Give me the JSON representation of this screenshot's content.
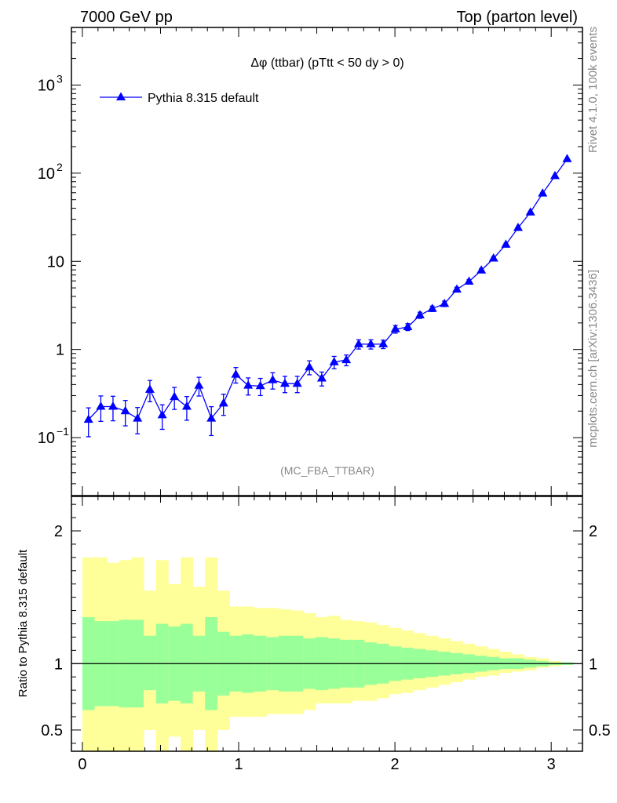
{
  "header": {
    "left": "7000 GeV pp",
    "right": "Top (parton level)"
  },
  "side_text": {
    "rivet": "Rivet 4.1.0,  100k events",
    "mcplots": "mcplots.cern.ch [arXiv:1306.3436]"
  },
  "colors": {
    "series": "#0000ff",
    "band_inner": "#99ff99",
    "band_outer": "#ffff99",
    "watermark": "#888888"
  },
  "chart_data": [
    {
      "type": "line",
      "title": "Δφ (ttbar) (pTtt < 50 dy > 0)",
      "watermark": "(MC_FBA_TTBAR)",
      "xlim": [
        -0.07,
        3.2
      ],
      "ylim": [
        0.022,
        4500
      ],
      "yscale": "log",
      "ytick_labels": [
        "10",
        "1",
        "10"
      ],
      "ytick_label_exponents": [
        "−1",
        "",
        "2"
      ],
      "ytick_label_values": [
        0.1,
        1,
        10,
        100,
        1000
      ],
      "ytick_labels_full": [
        "10^-1",
        "1",
        "10",
        "10^2",
        "10^3"
      ],
      "legend": {
        "label": "Pythia 8.315 default",
        "position": "top-left"
      },
      "series": [
        {
          "name": "Pythia 8.315 default",
          "marker": "triangle-up",
          "x": [
            0.039,
            0.118,
            0.196,
            0.275,
            0.353,
            0.432,
            0.511,
            0.589,
            0.668,
            0.746,
            0.825,
            0.903,
            0.982,
            1.061,
            1.139,
            1.218,
            1.296,
            1.375,
            1.453,
            1.532,
            1.611,
            1.689,
            1.768,
            1.846,
            1.925,
            2.003,
            2.082,
            2.16,
            2.239,
            2.317,
            2.396,
            2.474,
            2.553,
            2.631,
            2.71,
            2.788,
            2.867,
            2.945,
            3.024,
            3.102
          ],
          "y": [
            0.16,
            0.225,
            0.225,
            0.2,
            0.165,
            0.35,
            0.18,
            0.29,
            0.225,
            0.39,
            0.165,
            0.245,
            0.52,
            0.39,
            0.385,
            0.45,
            0.41,
            0.41,
            0.63,
            0.47,
            0.72,
            0.76,
            1.15,
            1.15,
            1.15,
            1.7,
            1.8,
            2.45,
            2.9,
            3.3,
            4.8,
            5.9,
            7.9,
            10.8,
            15.5,
            24.0,
            36.0,
            59.0,
            93.0,
            145.0
          ],
          "yerr_frac": [
            0.36,
            0.32,
            0.31,
            0.32,
            0.33,
            0.27,
            0.31,
            0.28,
            0.3,
            0.24,
            0.36,
            0.27,
            0.2,
            0.22,
            0.22,
            0.21,
            0.21,
            0.21,
            0.18,
            0.18,
            0.16,
            0.14,
            0.12,
            0.12,
            0.11,
            0.1,
            0.09,
            0.08,
            0.07,
            0.07,
            0.06,
            0.05,
            0.045,
            0.04,
            0.035,
            0.03,
            0.025,
            0.02,
            0.018,
            0.015
          ]
        }
      ]
    },
    {
      "type": "area",
      "ylabel": "Ratio to Pythia 8.315 default",
      "xlim": [
        -0.07,
        3.2
      ],
      "ylim": [
        0.34,
        2.26
      ],
      "xtick_labels": [
        "0",
        "1",
        "2",
        "3"
      ],
      "ytick_labels": [
        "0.5",
        "1",
        "2"
      ],
      "ytick_values": [
        0.5,
        1,
        2
      ],
      "bin_edges": [
        0.0,
        0.0785,
        0.157,
        0.2355,
        0.314,
        0.3925,
        0.471,
        0.5495,
        0.628,
        0.7065,
        0.785,
        0.8635,
        0.942,
        1.0205,
        1.099,
        1.1775,
        1.256,
        1.3345,
        1.413,
        1.4915,
        1.57,
        1.6485,
        1.727,
        1.8055,
        1.884,
        1.9625,
        2.041,
        2.1195,
        2.198,
        2.2765,
        2.355,
        2.4335,
        2.512,
        2.5905,
        2.669,
        2.7475,
        2.826,
        2.9045,
        2.983,
        3.0615,
        3.14
      ],
      "inner_band": {
        "name": "stat",
        "lo": [
          0.65,
          0.68,
          0.68,
          0.67,
          0.67,
          0.8,
          0.7,
          0.72,
          0.7,
          0.79,
          0.65,
          0.76,
          0.79,
          0.78,
          0.79,
          0.8,
          0.79,
          0.79,
          0.81,
          0.8,
          0.81,
          0.82,
          0.82,
          0.84,
          0.85,
          0.87,
          0.88,
          0.89,
          0.9,
          0.91,
          0.92,
          0.93,
          0.94,
          0.95,
          0.96,
          0.96,
          0.97,
          0.98,
          0.99,
          0.99
        ],
        "hi": [
          1.35,
          1.32,
          1.32,
          1.33,
          1.33,
          1.21,
          1.3,
          1.28,
          1.3,
          1.21,
          1.35,
          1.24,
          1.21,
          1.22,
          1.21,
          1.2,
          1.21,
          1.21,
          1.19,
          1.2,
          1.19,
          1.18,
          1.18,
          1.16,
          1.15,
          1.13,
          1.12,
          1.11,
          1.1,
          1.09,
          1.08,
          1.07,
          1.06,
          1.05,
          1.04,
          1.04,
          1.03,
          1.02,
          1.01,
          1.01
        ]
      },
      "outer_band": {
        "name": "total",
        "lo": [
          0.2,
          0.2,
          0.2,
          0.2,
          0.2,
          0.5,
          0.2,
          0.45,
          0.2,
          0.5,
          0.2,
          0.5,
          0.6,
          0.6,
          0.6,
          0.62,
          0.62,
          0.62,
          0.65,
          0.7,
          0.7,
          0.7,
          0.72,
          0.72,
          0.74,
          0.77,
          0.78,
          0.8,
          0.82,
          0.84,
          0.86,
          0.88,
          0.9,
          0.91,
          0.93,
          0.94,
          0.95,
          0.97,
          0.98,
          0.99
        ],
        "hi": [
          1.8,
          1.8,
          1.76,
          1.78,
          1.8,
          1.55,
          1.78,
          1.6,
          1.8,
          1.58,
          1.8,
          1.55,
          1.43,
          1.43,
          1.42,
          1.42,
          1.41,
          1.4,
          1.38,
          1.35,
          1.36,
          1.33,
          1.32,
          1.31,
          1.29,
          1.27,
          1.25,
          1.23,
          1.21,
          1.19,
          1.17,
          1.15,
          1.13,
          1.11,
          1.09,
          1.07,
          1.05,
          1.04,
          1.02,
          1.01
        ]
      },
      "reference_line": 1
    }
  ]
}
